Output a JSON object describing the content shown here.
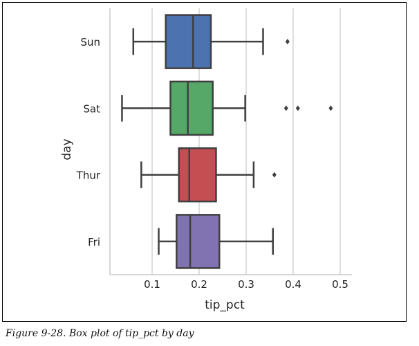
{
  "caption": "Figure 9-28. Box plot of tip_pct by day",
  "chart_data": {
    "type": "boxplot",
    "orientation": "horizontal",
    "xlabel": "tip_pct",
    "ylabel": "day",
    "xlim": [
      0.0,
      0.52
    ],
    "xticks": [
      0.1,
      0.2,
      0.3,
      0.4,
      0.5
    ],
    "xtick_labels": [
      "0.1",
      "0.2",
      "0.3",
      "0.4",
      "0.5"
    ],
    "grid": "vertical",
    "categories": [
      "Sun",
      "Sat",
      "Thur",
      "Fri"
    ],
    "boxes": [
      {
        "category": "Sun",
        "whisker_low": 0.06,
        "q1": 0.129,
        "median": 0.187,
        "q3": 0.225,
        "whisker_high": 0.336,
        "outliers": [
          0.388
        ],
        "color": "#4c72b0"
      },
      {
        "category": "Sat",
        "whisker_low": 0.036,
        "q1": 0.139,
        "median": 0.176,
        "q3": 0.229,
        "whisker_high": 0.298,
        "outliers": [
          0.385,
          0.41,
          0.48
        ],
        "color": "#55a868"
      },
      {
        "category": "Thur",
        "whisker_low": 0.077,
        "q1": 0.157,
        "median": 0.179,
        "q3": 0.236,
        "whisker_high": 0.316,
        "outliers": [
          0.36
        ],
        "color": "#c44e52"
      },
      {
        "category": "Fri",
        "whisker_low": 0.114,
        "q1": 0.152,
        "median": 0.181,
        "q3": 0.243,
        "whisker_high": 0.357,
        "outliers": [],
        "color": "#8172b2"
      }
    ]
  }
}
